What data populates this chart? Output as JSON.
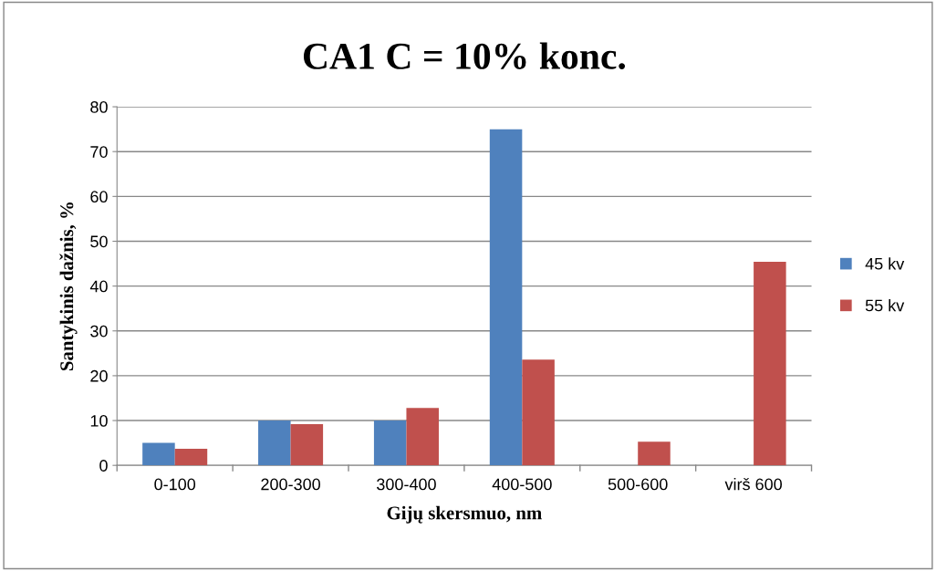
{
  "chart_data": {
    "type": "bar",
    "title": "CA1 C = 10% konc.",
    "xlabel": "Gijų skersmuo, nm",
    "ylabel": "Santykinis dažnis, %",
    "categories": [
      "0-100",
      "200-300",
      "300-400",
      "400-500",
      "500-600",
      "virš 600"
    ],
    "series": [
      {
        "name": "45 kv",
        "color": "#4f81bd",
        "values": [
          5,
          10,
          10,
          75,
          0,
          0
        ]
      },
      {
        "name": "55 kv",
        "color": "#c0504d",
        "values": [
          3.7,
          9.2,
          12.8,
          23.6,
          5.3,
          45.4
        ]
      }
    ],
    "ylim": [
      0,
      80
    ],
    "yticks": [
      0,
      10,
      20,
      30,
      40,
      50,
      60,
      70,
      80
    ],
    "grid": "y",
    "legend": "right"
  }
}
